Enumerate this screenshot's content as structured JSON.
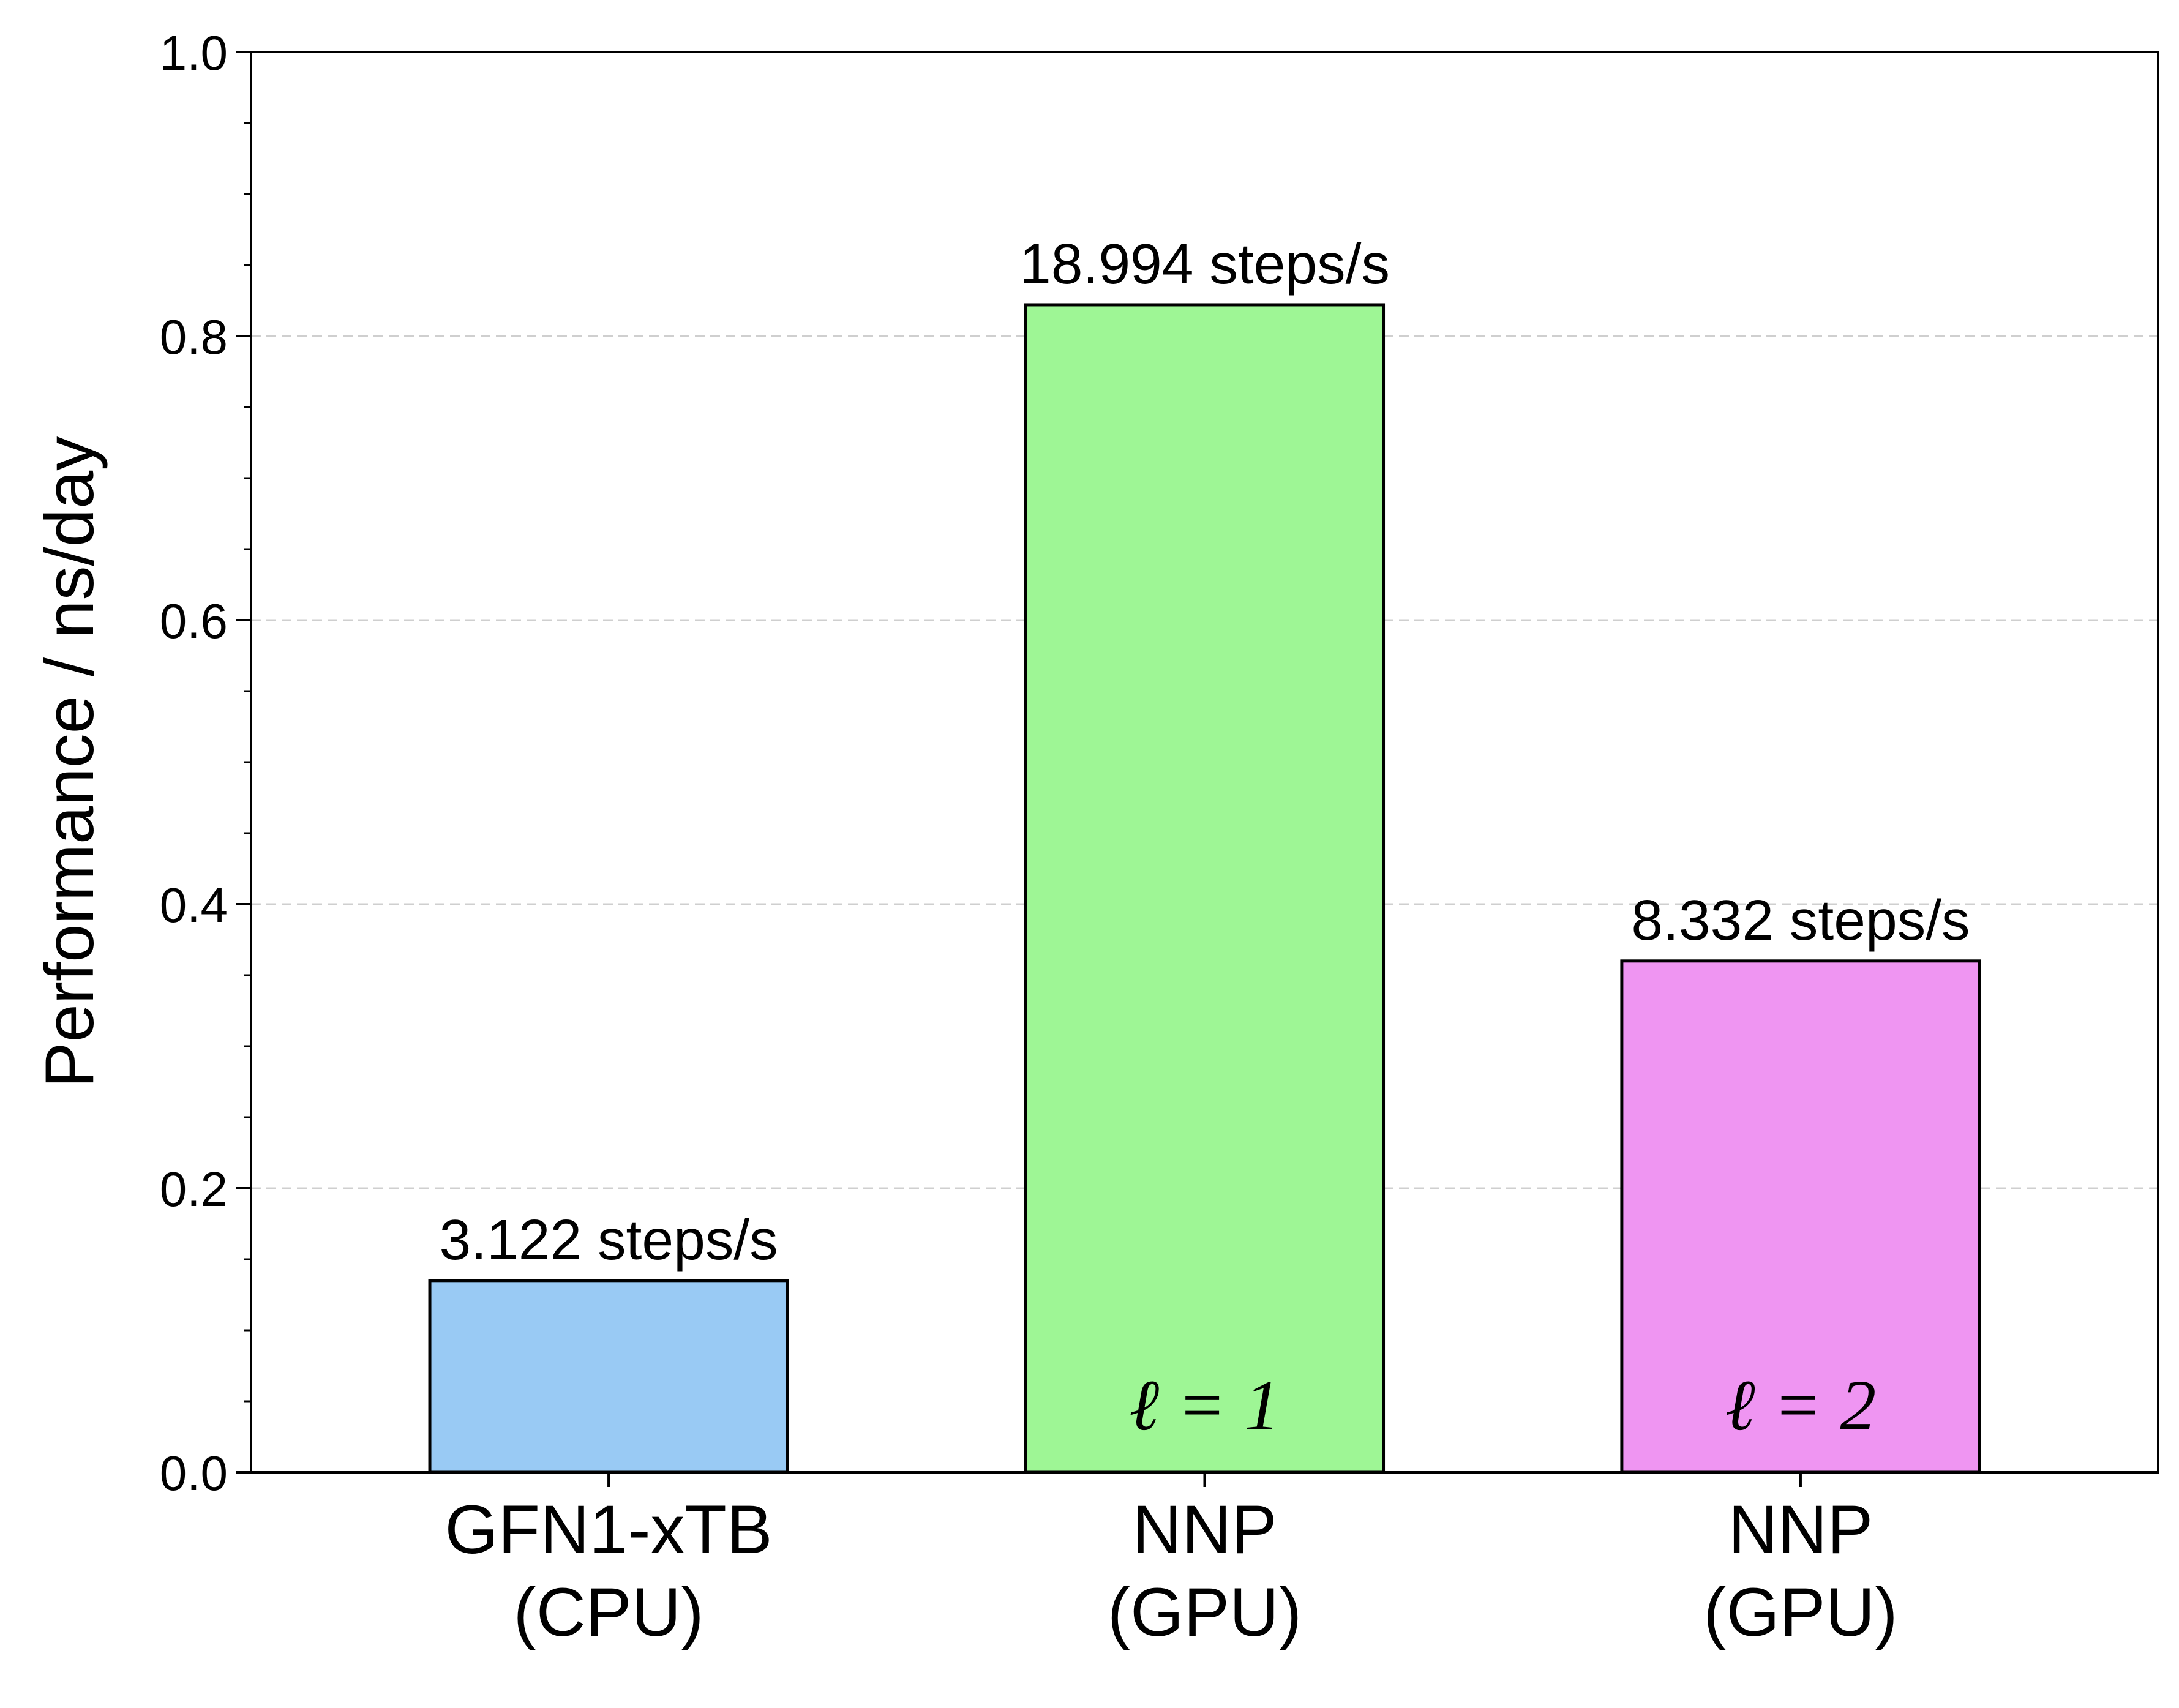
{
  "chart_data": {
    "type": "bar",
    "categories": [
      "GFN1-xTB\n(CPU)",
      "NNP\n(GPU)",
      "NNP\n(GPU)"
    ],
    "values": [
      0.135,
      0.822,
      0.36
    ],
    "data_labels": [
      "3.122 steps/s",
      "18.994 steps/s",
      "8.332 steps/s"
    ],
    "inner_labels": [
      "",
      "ℓ = 1",
      "ℓ = 2"
    ],
    "colors": [
      "#99CAF4",
      "#9EF695",
      "#EF95F2"
    ],
    "title": "",
    "xlabel": "",
    "ylabel": "Performance / ns/day",
    "ylim": [
      0,
      1.0
    ],
    "yticks": [
      "0.0",
      "0.2",
      "0.4",
      "0.6",
      "0.8",
      "1.0"
    ],
    "grid": "horizontal dashed",
    "legend": "none"
  }
}
